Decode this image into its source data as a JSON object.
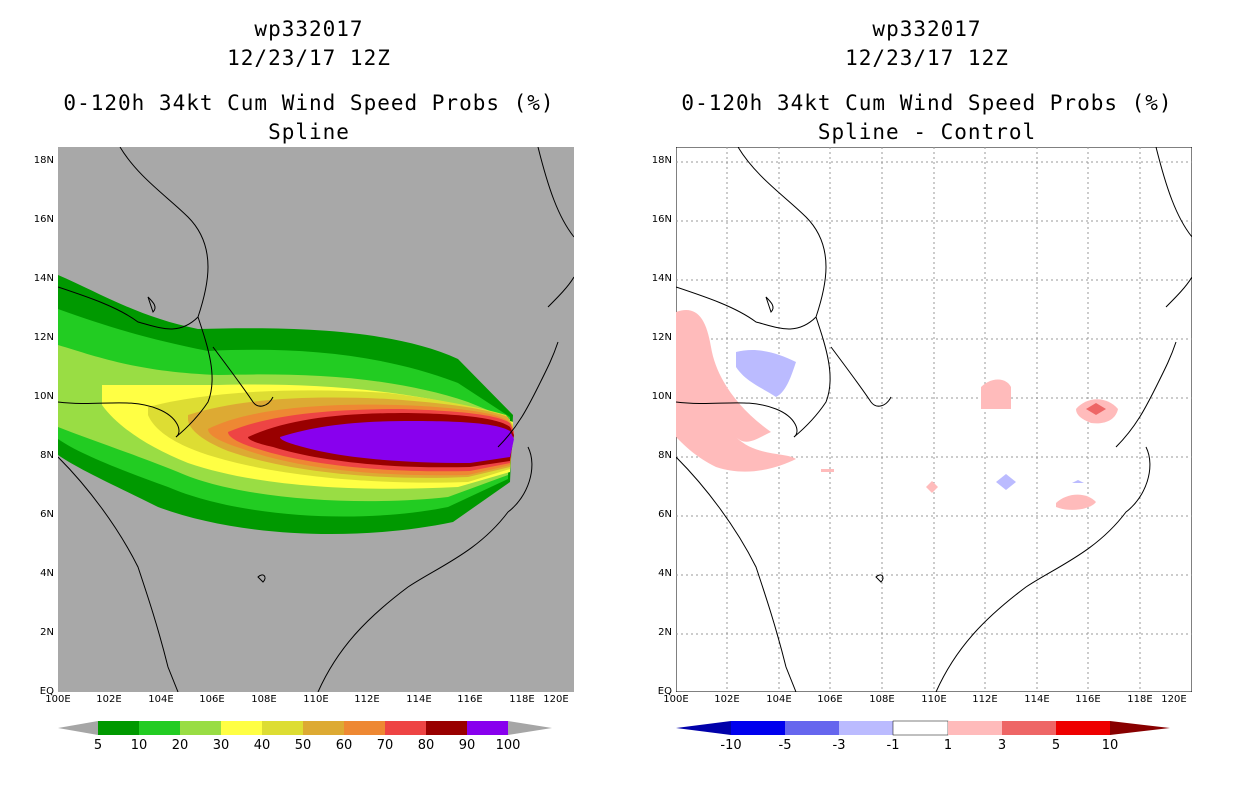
{
  "left": {
    "title_line1": "wp332017",
    "title_line2": "12/23/17 12Z",
    "title_line3": "0-120h 34kt Cum Wind Speed Probs (%)",
    "title_line4": "Spline",
    "colorbar_labels": [
      "5",
      "10",
      "20",
      "30",
      "40",
      "50",
      "60",
      "70",
      "80",
      "90",
      "100"
    ],
    "colorbar_colors": [
      "#a6a6a6",
      "#009900",
      "#22cc22",
      "#99dd44",
      "#ffff44",
      "#dddd33",
      "#ddaa33",
      "#ee8833",
      "#ee4444",
      "#990000",
      "#8800ee",
      "#a6a6a6"
    ],
    "background_color": "#a8a8a8"
  },
  "right": {
    "title_line1": "wp332017",
    "title_line2": "12/23/17 12Z",
    "title_line3": "0-120h 34kt Cum Wind Speed Probs (%)",
    "title_line4": "Spline - Control",
    "colorbar_labels": [
      "-10",
      "-5",
      "-3",
      "-1",
      "1",
      "3",
      "5",
      "10"
    ],
    "colorbar_colors": [
      "#0000aa",
      "#0000ee",
      "#6666ee",
      "#bbbbff",
      "#ffffff",
      "#ffbbbb",
      "#ee6666",
      "#ee0000",
      "#880000"
    ]
  },
  "axes": {
    "lat_labels": [
      "18N",
      "16N",
      "14N",
      "12N",
      "10N",
      "8N",
      "6N",
      "4N",
      "2N",
      "EQ"
    ],
    "lon_labels": [
      "100E",
      "102E",
      "104E",
      "106E",
      "108E",
      "110E",
      "112E",
      "114E",
      "116E",
      "118E",
      "120E"
    ]
  }
}
